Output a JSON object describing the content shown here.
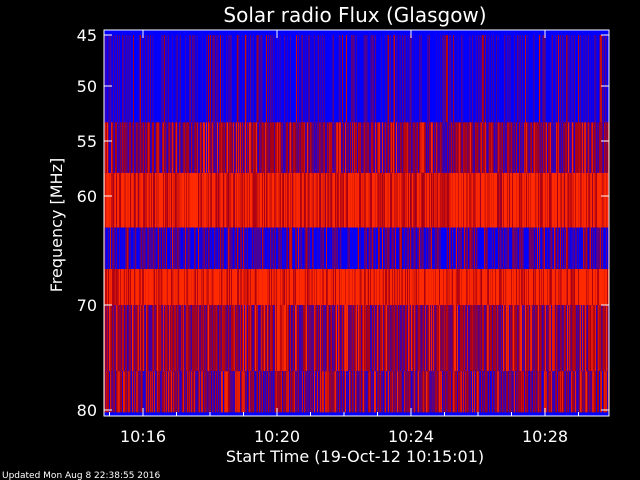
{
  "chart_data": {
    "type": "heatmap",
    "title": "Solar radio Flux (Glasgow)",
    "ylabel": "Frequency [MHz]",
    "xlabel": "Start Time (19-Oct-12 10:15:01)",
    "y_ticks": [
      "45",
      "50",
      "55",
      "60",
      "70",
      "80"
    ],
    "x_ticks": [
      "10:16",
      "10:20",
      "10:24",
      "10:28"
    ],
    "colormap": {
      "low": "#0000ff",
      "mid": "#aa0000",
      "high": "#ff2a00"
    },
    "bands": [
      {
        "freq_range": [
          45.0,
          53.3
        ],
        "mean_intensity": 0.05,
        "spike_rate": 0.05
      },
      {
        "freq_range": [
          53.3,
          57.9
        ],
        "mean_intensity": 0.35,
        "spike_rate": 0.15
      },
      {
        "freq_range": [
          57.9,
          62.9
        ],
        "mean_intensity": 0.7,
        "spike_rate": 0.35
      },
      {
        "freq_range": [
          62.9,
          66.7
        ],
        "mean_intensity": 0.15,
        "spike_rate": 0.1
      },
      {
        "freq_range": [
          66.7,
          70.0
        ],
        "mean_intensity": 0.75,
        "spike_rate": 0.4
      },
      {
        "freq_range": [
          70.0,
          76.3
        ],
        "mean_intensity": 0.4,
        "spike_rate": 0.2
      },
      {
        "freq_range": [
          76.3,
          80.2
        ],
        "mean_intensity": 0.3,
        "spike_rate": 0.25
      }
    ]
  },
  "footer": {
    "updated": "Updated Mon Aug  8 22:38:55 2016"
  }
}
